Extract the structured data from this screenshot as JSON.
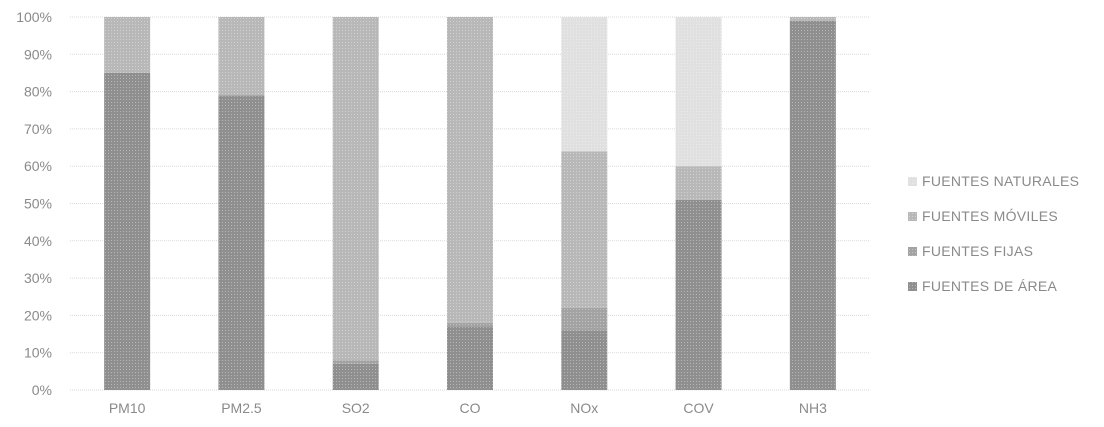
{
  "chart_data": {
    "type": "bar",
    "stacked": true,
    "percent": true,
    "categories": [
      "PM10",
      "PM2.5",
      "SO2",
      "CO",
      "NOx",
      "COV",
      "NH3"
    ],
    "series": [
      {
        "name": "FUENTES DE ÁREA",
        "values": [
          85,
          79,
          7,
          17,
          16,
          51,
          99
        ],
        "color": "#8f8f8f"
      },
      {
        "name": "FUENTES FIJAS",
        "values": [
          0,
          0,
          1,
          1,
          6,
          0,
          0
        ],
        "color": "#a3a3a3"
      },
      {
        "name": "FUENTES MÓVILES",
        "values": [
          15,
          21,
          92,
          82,
          42,
          9,
          1
        ],
        "color": "#b8b8b8"
      },
      {
        "name": "FUENTES NATURALES",
        "values": [
          0,
          0,
          0,
          0,
          36,
          40,
          0
        ],
        "color": "#e0e0e0"
      }
    ],
    "yticks": [
      "0%",
      "10%",
      "20%",
      "30%",
      "40%",
      "50%",
      "60%",
      "70%",
      "80%",
      "90%",
      "100%"
    ],
    "ylim": [
      0,
      100
    ],
    "grid": true,
    "legend_position": "right",
    "legend_order": [
      "FUENTES NATURALES",
      "FUENTES MÓVILES",
      "FUENTES FIJAS",
      "FUENTES DE ÁREA"
    ]
  }
}
